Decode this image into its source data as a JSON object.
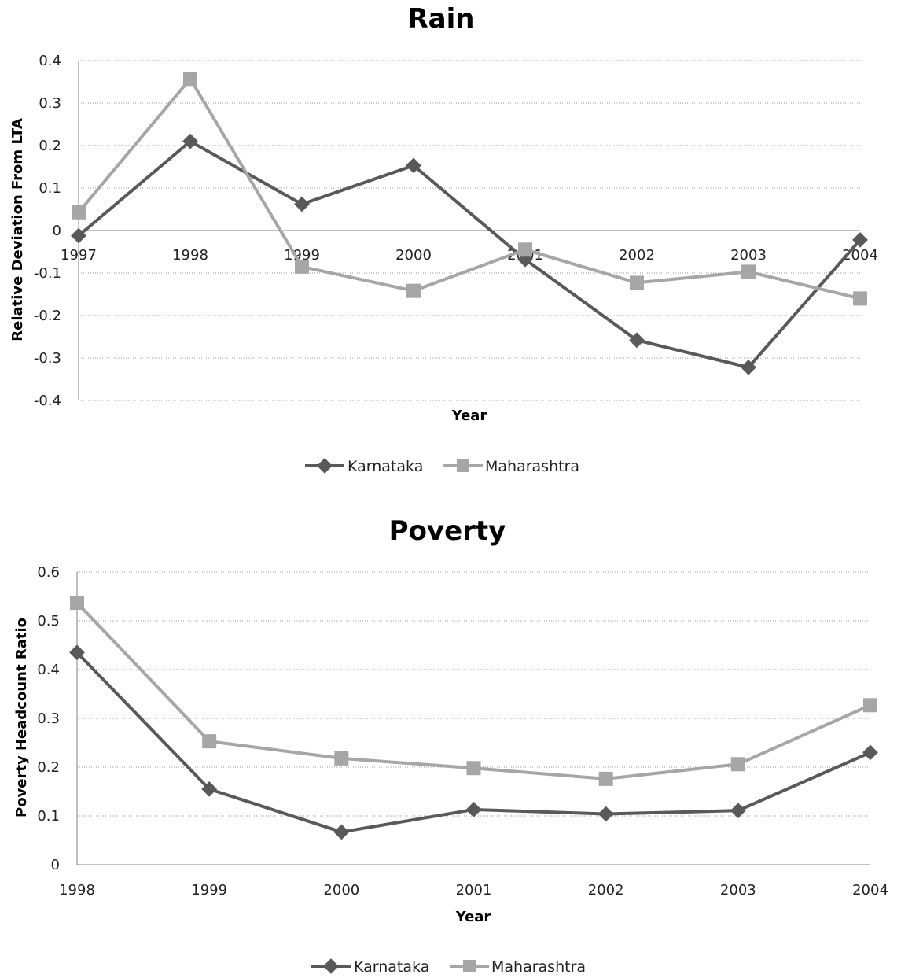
{
  "chart_data": [
    {
      "type": "line",
      "title": "Rain",
      "xlabel": "Year",
      "ylabel": "Relative Deviation From LTA",
      "categories": [
        "1997",
        "1998",
        "1999",
        "2000",
        "2001",
        "2002",
        "2003",
        "2004"
      ],
      "yticks": [
        "0.4",
        "0.3",
        "0.2",
        "0.1",
        "0",
        "-0.1",
        "-0.2",
        "-0.3",
        "-0.4"
      ],
      "ylim": [
        -0.4,
        0.4
      ],
      "grid": true,
      "legend": "bottom",
      "series": [
        {
          "name": "Karnataka",
          "marker": "diamond",
          "color": "#595959",
          "values": [
            -0.012,
            0.21,
            0.062,
            0.153,
            -0.068,
            -0.258,
            -0.322,
            -0.022
          ]
        },
        {
          "name": "Maharashtra",
          "marker": "square",
          "color": "#a6a6a6",
          "values": [
            0.043,
            0.357,
            -0.085,
            -0.142,
            -0.045,
            -0.123,
            -0.097,
            -0.16
          ]
        }
      ]
    },
    {
      "type": "line",
      "title": "Poverty",
      "xlabel": "Year",
      "ylabel": "Poverty Headcount Ratio",
      "categories": [
        "1998",
        "1999",
        "2000",
        "2001",
        "2002",
        "2003",
        "2004"
      ],
      "yticks": [
        "0.6",
        "0.5",
        "0.4",
        "0.3",
        "0.2",
        "0.1",
        "0"
      ],
      "ylim": [
        0,
        0.6
      ],
      "grid": true,
      "legend": "bottom",
      "series": [
        {
          "name": "Karnataka",
          "marker": "diamond",
          "color": "#595959",
          "values": [
            0.435,
            0.155,
            0.067,
            0.113,
            0.104,
            0.111,
            0.23
          ]
        },
        {
          "name": "Maharashtra",
          "marker": "square",
          "color": "#a6a6a6",
          "values": [
            0.537,
            0.253,
            0.218,
            0.198,
            0.176,
            0.206,
            0.327
          ]
        }
      ]
    }
  ]
}
